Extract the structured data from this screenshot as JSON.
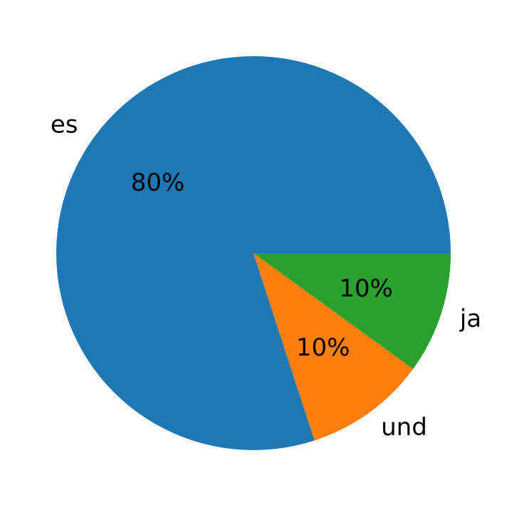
{
  "chart_data": {
    "type": "pie",
    "categories": [
      "es",
      "und",
      "ja"
    ],
    "values": [
      80,
      10,
      10
    ],
    "value_labels": [
      "80%",
      "10%",
      "10%"
    ],
    "colors": [
      "#1f77b4",
      "#ff7f0e",
      "#2ca02c"
    ]
  }
}
